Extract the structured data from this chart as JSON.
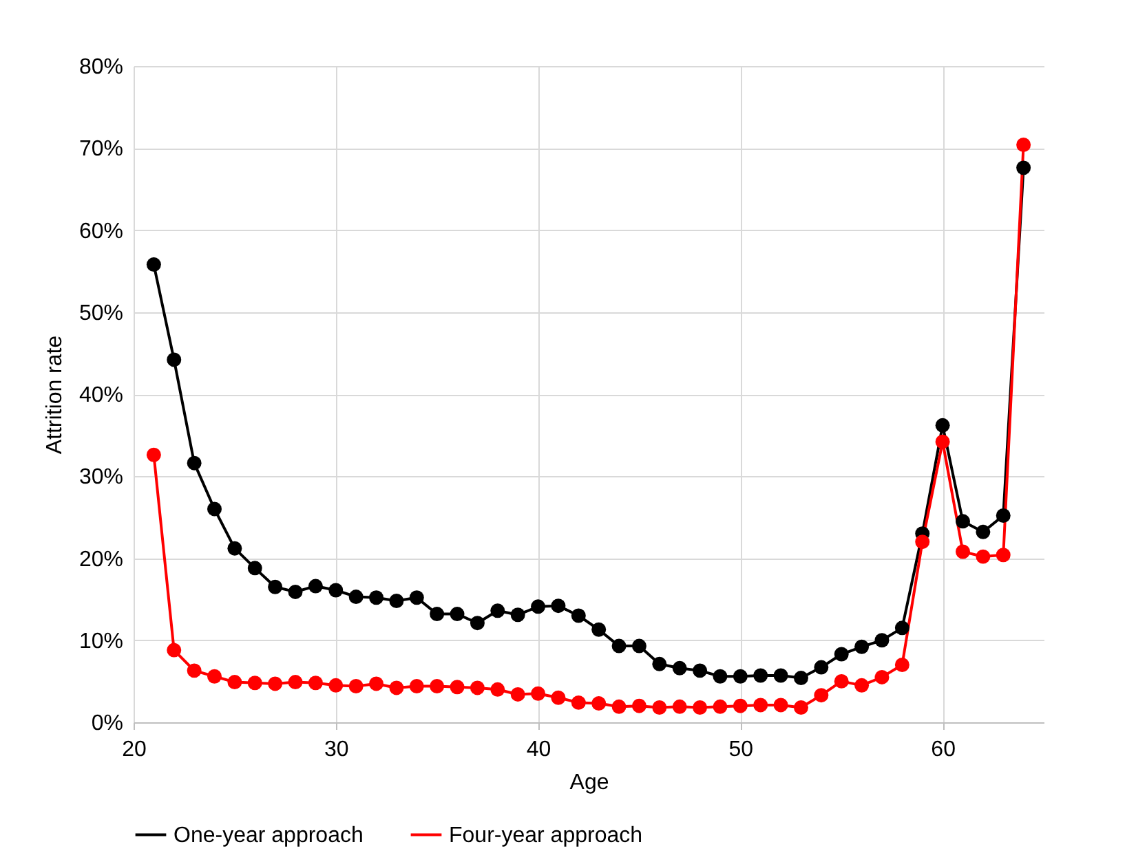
{
  "chart_data": {
    "type": "line",
    "xlabel": "Age",
    "ylabel": "Attrition rate",
    "x": [
      21,
      22,
      23,
      24,
      25,
      26,
      27,
      28,
      29,
      30,
      31,
      32,
      33,
      34,
      35,
      36,
      37,
      38,
      39,
      40,
      41,
      42,
      43,
      44,
      45,
      46,
      47,
      48,
      49,
      50,
      51,
      52,
      53,
      54,
      55,
      56,
      57,
      58,
      59,
      60,
      61,
      62,
      63,
      64
    ],
    "series": [
      {
        "name": "One-year approach",
        "color": "#000000",
        "values": [
          55.8,
          44.2,
          31.6,
          26,
          21.2,
          18.8,
          16.5,
          15.9,
          16.6,
          16.1,
          15.3,
          15.2,
          14.8,
          15.2,
          13.2,
          13.2,
          12.1,
          13.6,
          13.1,
          14.1,
          14.2,
          13,
          11.3,
          9.3,
          9.3,
          7.1,
          6.6,
          6.3,
          5.6,
          5.6,
          5.7,
          5.7,
          5.4,
          6.7,
          8.3,
          9.2,
          10,
          11.5,
          23,
          36.2,
          24.5,
          23.2,
          25.2,
          67.6
        ]
      },
      {
        "name": "Four-year approach",
        "color": "#ff0000",
        "values": [
          32.6,
          8.8,
          6.3,
          5.6,
          4.9,
          4.8,
          4.7,
          4.9,
          4.8,
          4.5,
          4.4,
          4.7,
          4.2,
          4.4,
          4.4,
          4.3,
          4.2,
          4,
          3.4,
          3.5,
          3,
          2.4,
          2.3,
          1.9,
          2,
          1.8,
          1.9,
          1.8,
          1.9,
          2,
          2.1,
          2.1,
          1.8,
          3.3,
          5,
          4.5,
          5.5,
          7,
          22,
          34.2,
          20.8,
          20.2,
          20.4,
          70.4
        ]
      }
    ],
    "xlim": [
      20,
      65
    ],
    "xticks": [
      20,
      30,
      40,
      50,
      60
    ],
    "ylim": [
      0,
      80
    ],
    "yticks": [
      {
        "value": 0,
        "label": "0%"
      },
      {
        "value": 10,
        "label": "10%"
      },
      {
        "value": 20,
        "label": "20%"
      },
      {
        "value": 30,
        "label": "30%"
      },
      {
        "value": 40,
        "label": "40%"
      },
      {
        "value": 50,
        "label": "50%"
      },
      {
        "value": 60,
        "label": "60%"
      },
      {
        "value": 70,
        "label": "70%"
      },
      {
        "value": 80,
        "label": "80%"
      }
    ],
    "grid": true,
    "legend": "bottom",
    "marker": "circle",
    "line_style": "solid"
  }
}
